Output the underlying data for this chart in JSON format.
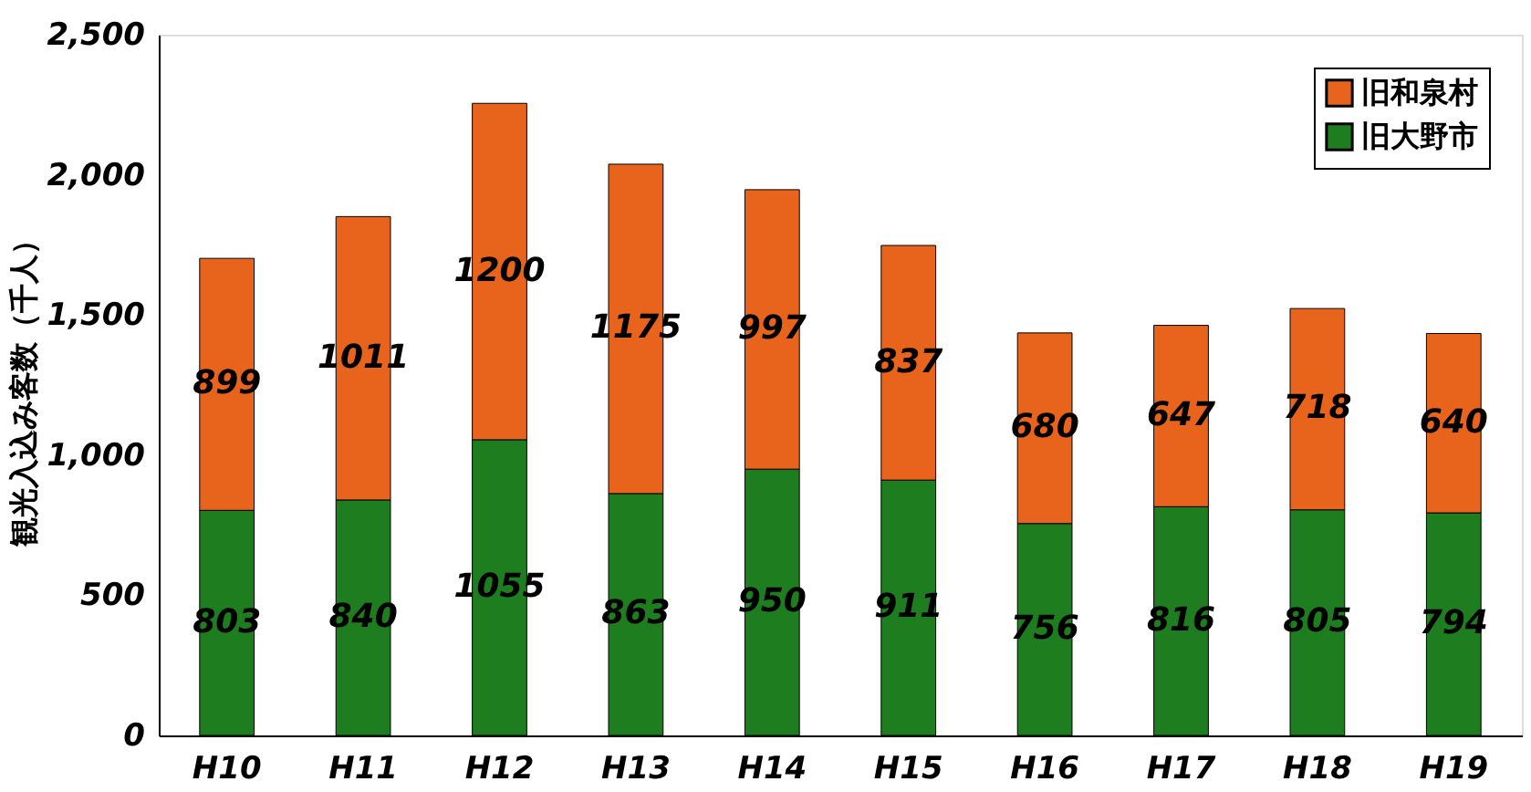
{
  "chart_data": {
    "type": "bar",
    "stacked": true,
    "ylabel": "観光入込み客数（千人）",
    "categories": [
      "H10",
      "H11",
      "H12",
      "H13",
      "H14",
      "H15",
      "H16",
      "H17",
      "H18",
      "H19"
    ],
    "series": [
      {
        "name": "旧大野市",
        "color": "#1e7d1e",
        "values": [
          803,
          840,
          1055,
          863,
          950,
          911,
          756,
          816,
          805,
          794
        ]
      },
      {
        "name": "旧和泉村",
        "color": "#e8641c",
        "values": [
          899,
          1011,
          1200,
          1175,
          997,
          837,
          680,
          647,
          718,
          640
        ]
      }
    ],
    "ylim": [
      0,
      2500
    ],
    "yticks": [
      0,
      500,
      {
        "value": 1000,
        "label": "1,000"
      },
      {
        "value": 1500,
        "label": "1,500"
      },
      {
        "value": 2000,
        "label": "2,000"
      },
      {
        "value": 2500,
        "label": "2,500"
      }
    ],
    "data_labels": true,
    "legend": "top right",
    "grid": false
  }
}
